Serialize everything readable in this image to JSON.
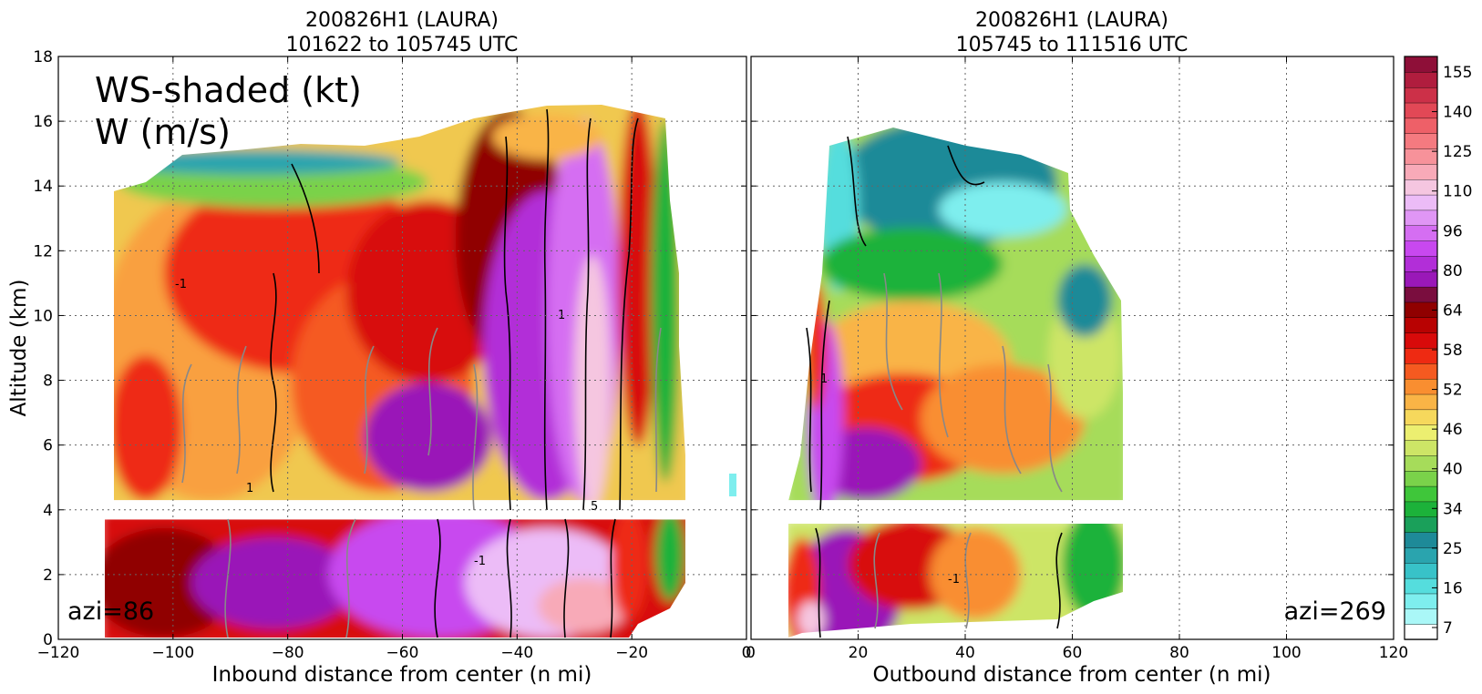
{
  "chart_data": [
    {
      "type": "heatmap",
      "panel": "left",
      "title": [
        "200826H1 (LAURA)",
        "101622 to 105745 UTC"
      ],
      "xlabel": "Inbound distance from center (n mi)",
      "ylabel": "Altitude (km)",
      "xlim": [
        -120,
        0
      ],
      "ylim": [
        0,
        18
      ],
      "xticks": [
        -120,
        -100,
        -80,
        -60,
        -40,
        -20,
        0
      ],
      "yticks": [
        0,
        2,
        4,
        6,
        8,
        10,
        12,
        14,
        16,
        18
      ],
      "annotations": [
        "WS-shaded (kt)",
        "W (m/s)",
        "azi=86"
      ],
      "contour_labels": [
        "-1",
        "1",
        "5"
      ],
      "grid": true,
      "wind_speed_profile": [
        {
          "x": -110,
          "ws": 50
        },
        {
          "x": -100,
          "ws": 55
        },
        {
          "x": -80,
          "ws": 56
        },
        {
          "x": -60,
          "ws": 62
        },
        {
          "x": -45,
          "ws": 75
        },
        {
          "x": -35,
          "ws": 96
        },
        {
          "x": -28,
          "ws": 115
        },
        {
          "x": -22,
          "ws": 60
        },
        {
          "x": -15,
          "ws": 35
        }
      ]
    },
    {
      "type": "heatmap",
      "panel": "right",
      "title": [
        "200826H1 (LAURA)",
        "105745 to 111516 UTC"
      ],
      "xlabel": "Outbound distance from center (n mi)",
      "xlim": [
        0,
        120
      ],
      "ylim": [
        0,
        18
      ],
      "xticks": [
        0,
        20,
        40,
        60,
        80,
        100,
        120
      ],
      "annotations": [
        "azi=269"
      ],
      "contour_labels": [
        "-1",
        "1"
      ],
      "grid": true,
      "wind_speed_profile": [
        {
          "x": 8,
          "ws": 100
        },
        {
          "x": 12,
          "ws": 80
        },
        {
          "x": 20,
          "ws": 70
        },
        {
          "x": 30,
          "ws": 60
        },
        {
          "x": 45,
          "ws": 52
        },
        {
          "x": 60,
          "ws": 44
        },
        {
          "x": 68,
          "ws": 36
        }
      ]
    }
  ],
  "colorbar": {
    "tick_labels": [
      "7",
      "16",
      "25",
      "34",
      "40",
      "46",
      "52",
      "58",
      "64",
      "80",
      "96",
      "110",
      "125",
      "140",
      "155"
    ],
    "colors": [
      "#ffffff",
      "#aaf7f7",
      "#7eeeee",
      "#55dddd",
      "#38c2c8",
      "#2aa4ae",
      "#1e8a98",
      "#1aa05a",
      "#1cb23a",
      "#3fc63a",
      "#7ad24a",
      "#a6dc5a",
      "#cde566",
      "#ecef70",
      "#f6d85c",
      "#f9b446",
      "#f98e30",
      "#f55a20",
      "#ee2a12",
      "#d80a0a",
      "#b80202",
      "#900000",
      "#7a0d3e",
      "#9a18b8",
      "#b22ed8",
      "#c848ef",
      "#d56ef2",
      "#e096f5",
      "#ecbcf7",
      "#f5c6e0",
      "#f8aab8",
      "#f7929a",
      "#f57a80",
      "#ee6068",
      "#e24856",
      "#cc3048",
      "#b01d3e",
      "#8e0f38"
    ]
  }
}
